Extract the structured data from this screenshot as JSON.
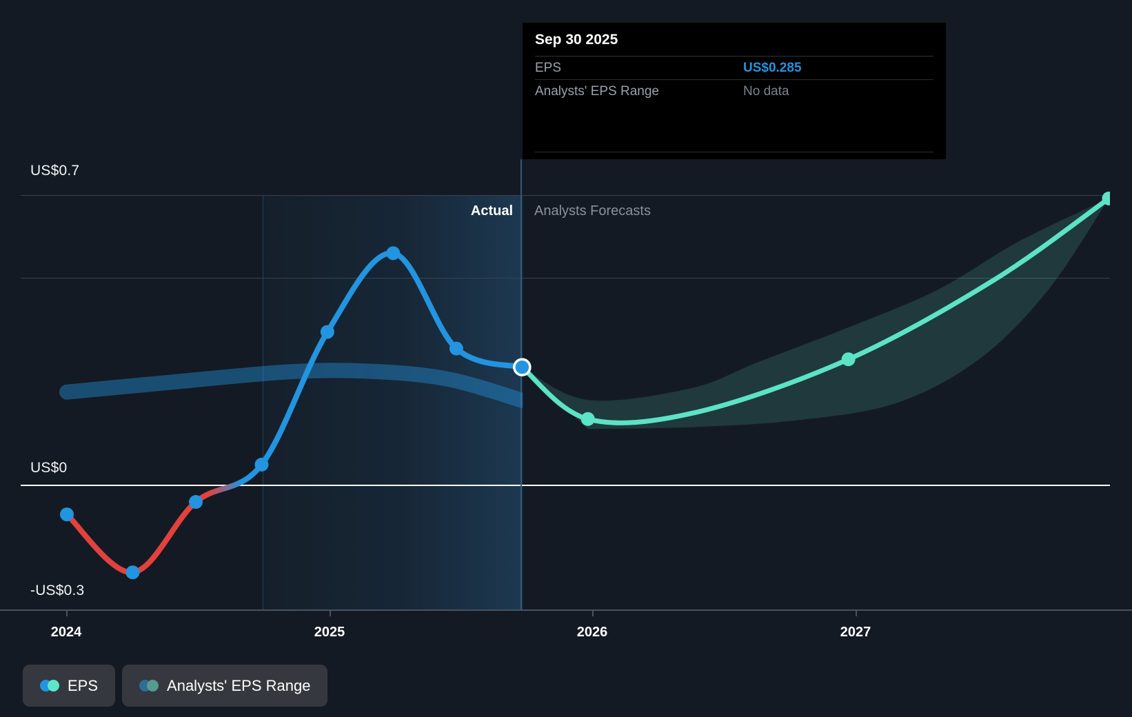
{
  "tooltip": {
    "date": "Sep 30 2025",
    "rows": [
      {
        "label": "EPS",
        "value": "US$0.285",
        "value_color": "#2394df"
      },
      {
        "label": "Analysts' EPS Range",
        "value": "No data",
        "value_color": "#7c838d"
      }
    ]
  },
  "annotations": {
    "actual_label": "Actual",
    "forecast_label": "Analysts Forecasts"
  },
  "y_axis_labels": {
    "top": "US$0.7",
    "zero": "US$0",
    "bottom": "-US$0.3"
  },
  "x_axis_labels": [
    "2024",
    "2025",
    "2026",
    "2027"
  ],
  "legend": [
    {
      "label": "EPS",
      "dot_colors": [
        "#2394df",
        "#5fe6c8"
      ]
    },
    {
      "label": "Analysts' EPS Range",
      "dot_colors": [
        "#2e6e94",
        "#579a8e"
      ]
    }
  ],
  "chart_data": {
    "type": "line",
    "title": "EPS past performance and analysts forecast",
    "x_ticks": [
      2024,
      2025,
      2026,
      2027
    ],
    "ylim": [
      -0.3,
      0.7
    ],
    "y_ticks": [
      {
        "v": 0.7,
        "label": "US$0.7"
      },
      {
        "v": 0.5,
        "label": ""
      },
      {
        "v": 0,
        "label": "US$0"
      },
      {
        "v": -0.3,
        "label": "-US$0.3"
      }
    ],
    "divider": {
      "t": 2025.73,
      "date": "Sep 30 2025",
      "highlight_from": 2024.74
    },
    "series": [
      {
        "name": "EPS (actual)",
        "color": "#2394df",
        "negative_color": "#e2413d",
        "stroke_width": 8,
        "points": [
          {
            "t": 2024.0,
            "v": -0.07,
            "dot": true
          },
          {
            "t": 2024.25,
            "v": -0.21,
            "dot": true
          },
          {
            "t": 2024.49,
            "v": -0.04,
            "dot": true
          },
          {
            "t": 2024.74,
            "v": 0.05,
            "dot": true
          },
          {
            "t": 2024.99,
            "v": 0.37,
            "dot": true
          },
          {
            "t": 2025.24,
            "v": 0.56,
            "dot": true
          },
          {
            "t": 2025.48,
            "v": 0.33,
            "dot": true
          },
          {
            "t": 2025.73,
            "v": 0.285,
            "dot": true,
            "junction": true
          }
        ]
      },
      {
        "name": "EPS (analysts forecast)",
        "color": "#5ce3c5",
        "stroke_width": 7,
        "points": [
          {
            "t": 2025.73,
            "v": 0.285
          },
          {
            "t": 2025.98,
            "v": 0.16,
            "dot": true
          },
          {
            "t": 2026.39,
            "v": 0.176
          },
          {
            "t": 2026.97,
            "v": 0.304,
            "dot": true
          },
          {
            "t": 2027.52,
            "v": 0.494
          },
          {
            "t": 2027.96,
            "v": 0.692,
            "dot": true
          }
        ]
      }
    ],
    "bands": [
      {
        "name": "Analysts' EPS Range (past)",
        "style": "ribbon",
        "color": "rgba(35,148,223,0.42)",
        "width": 22,
        "center": [
          [
            2024.0,
            0.225
          ],
          [
            2024.4,
            0.249
          ],
          [
            2024.85,
            0.274
          ],
          [
            2025.16,
            0.275
          ],
          [
            2025.45,
            0.256
          ],
          [
            2025.73,
            0.205
          ]
        ]
      },
      {
        "name": "Analysts' EPS Range (forecast)",
        "style": "area",
        "color": "rgba(92,226,197,0.16)",
        "top": [
          [
            2025.73,
            0.284
          ],
          [
            2025.98,
            0.206
          ],
          [
            2026.37,
            0.234
          ],
          [
            2026.63,
            0.298
          ],
          [
            2026.97,
            0.381
          ],
          [
            2027.31,
            0.472
          ],
          [
            2027.62,
            0.589
          ],
          [
            2027.96,
            0.692
          ]
        ],
        "bottom": [
          [
            2025.98,
            0.136
          ],
          [
            2026.36,
            0.14
          ],
          [
            2026.76,
            0.156
          ],
          [
            2027.15,
            0.198
          ],
          [
            2027.47,
            0.306
          ],
          [
            2027.73,
            0.472
          ],
          [
            2027.96,
            0.692
          ]
        ]
      }
    ]
  }
}
